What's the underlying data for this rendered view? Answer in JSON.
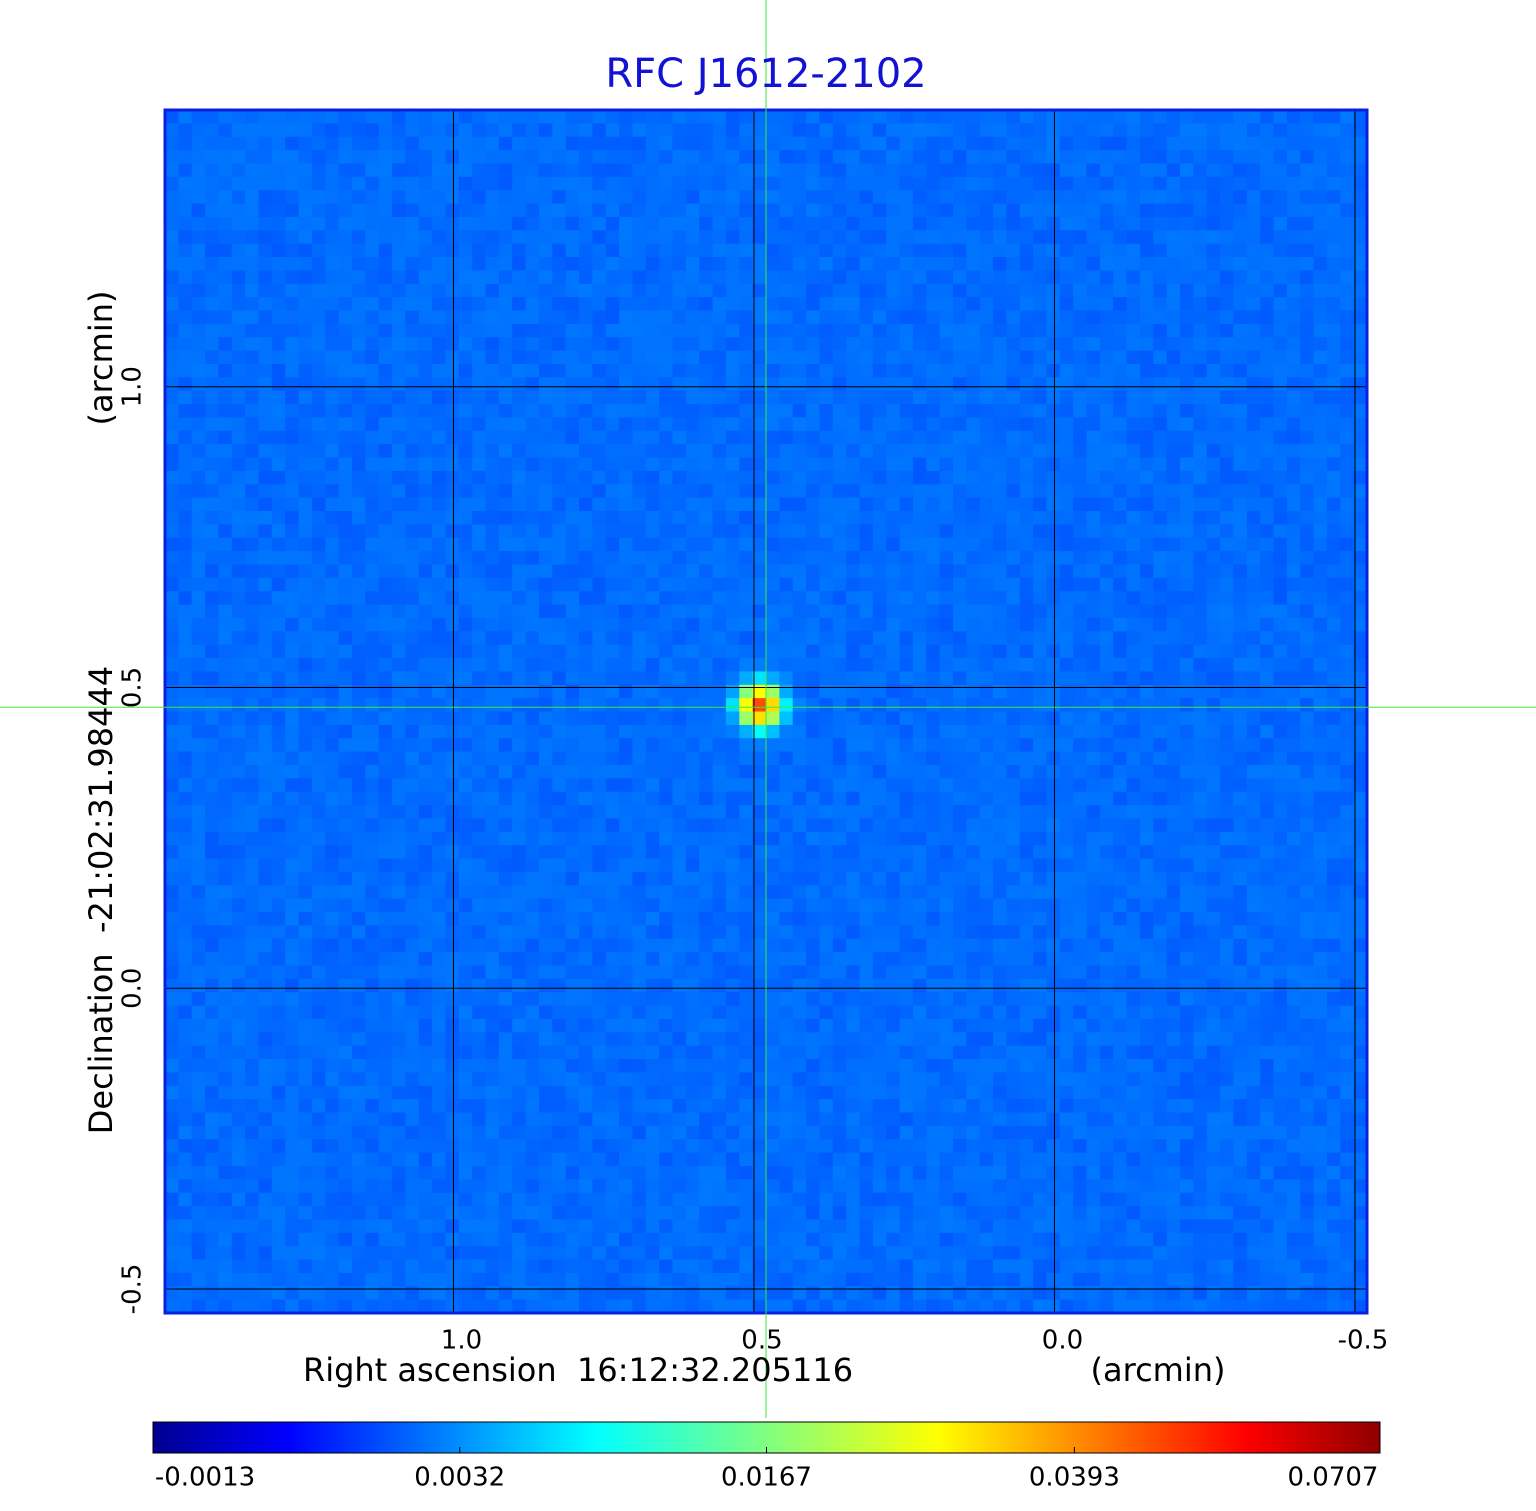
{
  "chart_data": {
    "type": "image",
    "title": "RFC J1612-2102",
    "xlabel": "Right ascension  16:12:32.205116",
    "xlabel_unit": "(arcmin)",
    "ylabel": "Declination  -21:02:31.98444",
    "ylabel_unit": "(arcmin)",
    "xlim": [
      1.48,
      -0.52
    ],
    "xticks": [
      {
        "value": 1,
        "label": "1.0"
      },
      0.5,
      {
        "value": 0,
        "label": "0.0"
      },
      -0.5
    ],
    "ylim": [
      -0.54,
      1.46
    ],
    "yticks": [
      -0.5,
      {
        "value": 0,
        "label": "0.0"
      },
      0.5,
      {
        "value": 1,
        "label": "1.0"
      }
    ],
    "grid": true,
    "crosshair": {
      "x": 0.48,
      "y": 0.467
    },
    "source": {
      "x": 0.49,
      "y": 0.47,
      "peak": 0.0707
    },
    "colorbar": {
      "scale": "sqrt",
      "colormap": "jet",
      "clim": [
        -0.0013,
        0.0707
      ],
      "ticks": [
        -0.0013,
        0.0032,
        0.0167,
        0.0393,
        0.0707
      ]
    }
  }
}
